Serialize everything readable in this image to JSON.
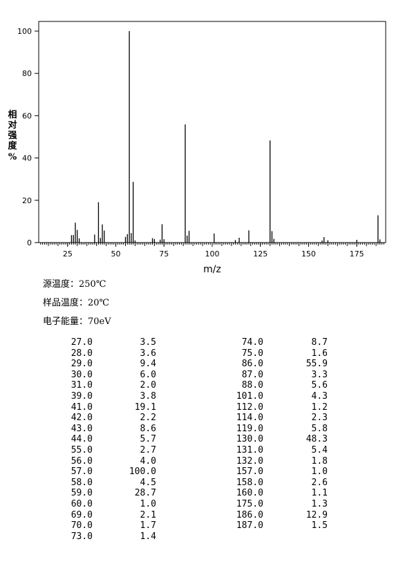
{
  "chart_data": {
    "type": "bar",
    "xlabel": "m/z",
    "ylabel": "相对强度 %",
    "xlim": [
      10,
      190
    ],
    "ylim": [
      0,
      100
    ],
    "x_ticks": [
      25,
      50,
      75,
      100,
      125,
      150,
      175
    ],
    "y_ticks": [
      0,
      20,
      40,
      60,
      80,
      100
    ],
    "grid": false,
    "x": [
      27,
      28,
      29,
      30,
      31,
      39,
      41,
      42,
      43,
      44,
      55,
      56,
      57,
      58,
      59,
      60,
      69,
      70,
      73,
      74,
      75,
      86,
      87,
      88,
      101,
      112,
      114,
      119,
      130,
      131,
      132,
      157,
      158,
      160,
      175,
      186,
      187
    ],
    "values": [
      3.5,
      3.6,
      9.4,
      6.0,
      2.0,
      3.8,
      19.1,
      2.2,
      8.6,
      5.7,
      2.7,
      4.0,
      100.0,
      4.5,
      28.7,
      1.0,
      2.1,
      1.7,
      1.4,
      8.7,
      1.6,
      55.9,
      3.3,
      5.6,
      4.3,
      1.2,
      2.3,
      5.8,
      48.3,
      5.4,
      1.8,
      1.0,
      2.6,
      1.1,
      1.3,
      12.9,
      1.5
    ]
  },
  "conditions": {
    "source_temp": "源温度：250℃",
    "sample_temp": "样品温度：20℃",
    "electron_energy": "电子能量：70eV"
  },
  "peak_table": {
    "left": [
      {
        "mz": "27.0",
        "abundance": "3.5"
      },
      {
        "mz": "28.0",
        "abundance": "3.6"
      },
      {
        "mz": "29.0",
        "abundance": "9.4"
      },
      {
        "mz": "30.0",
        "abundance": "6.0"
      },
      {
        "mz": "31.0",
        "abundance": "2.0"
      },
      {
        "mz": "39.0",
        "abundance": "3.8"
      },
      {
        "mz": "41.0",
        "abundance": "19.1"
      },
      {
        "mz": "42.0",
        "abundance": "2.2"
      },
      {
        "mz": "43.0",
        "abundance": "8.6"
      },
      {
        "mz": "44.0",
        "abundance": "5.7"
      },
      {
        "mz": "55.0",
        "abundance": "2.7"
      },
      {
        "mz": "56.0",
        "abundance": "4.0"
      },
      {
        "mz": "57.0",
        "abundance": "100.0"
      },
      {
        "mz": "58.0",
        "abundance": "4.5"
      },
      {
        "mz": "59.0",
        "abundance": "28.7"
      },
      {
        "mz": "60.0",
        "abundance": "1.0"
      },
      {
        "mz": "69.0",
        "abundance": "2.1"
      },
      {
        "mz": "70.0",
        "abundance": "1.7"
      },
      {
        "mz": "73.0",
        "abundance": "1.4"
      }
    ],
    "right": [
      {
        "mz": "74.0",
        "abundance": "8.7"
      },
      {
        "mz": "75.0",
        "abundance": "1.6"
      },
      {
        "mz": "86.0",
        "abundance": "55.9"
      },
      {
        "mz": "87.0",
        "abundance": "3.3"
      },
      {
        "mz": "88.0",
        "abundance": "5.6"
      },
      {
        "mz": "101.0",
        "abundance": "4.3"
      },
      {
        "mz": "112.0",
        "abundance": "1.2"
      },
      {
        "mz": "114.0",
        "abundance": "2.3"
      },
      {
        "mz": "119.0",
        "abundance": "5.8"
      },
      {
        "mz": "130.0",
        "abundance": "48.3"
      },
      {
        "mz": "131.0",
        "abundance": "5.4"
      },
      {
        "mz": "132.0",
        "abundance": "1.8"
      },
      {
        "mz": "157.0",
        "abundance": "1.0"
      },
      {
        "mz": "158.0",
        "abundance": "2.6"
      },
      {
        "mz": "160.0",
        "abundance": "1.1"
      },
      {
        "mz": "175.0",
        "abundance": "1.3"
      },
      {
        "mz": "186.0",
        "abundance": "12.9"
      },
      {
        "mz": "187.0",
        "abundance": "1.5"
      }
    ]
  }
}
